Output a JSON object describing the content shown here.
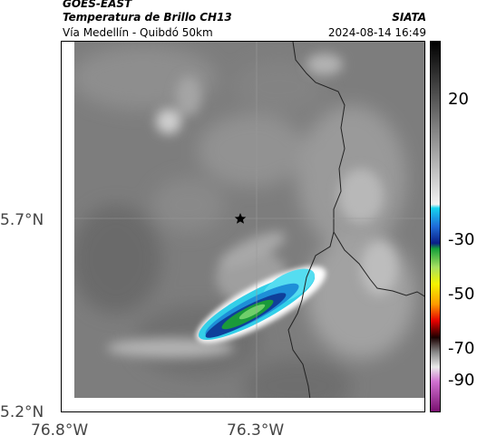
{
  "header": {
    "satellite": "GOES-EAST",
    "product": "Temperatura de Brillo CH13",
    "region": "Vía Medellín - Quibdó 50km",
    "agency": "SIATA",
    "datetime": "2024-08-14 16:49"
  },
  "map": {
    "lat_labels": [
      "5.7°N",
      "5.2°N"
    ],
    "lon_labels": [
      "76.8°W",
      "76.3°W"
    ],
    "marker": "star"
  },
  "colorbar": {
    "tick_labels": [
      "20",
      "-30",
      "-50",
      "-70",
      "-90"
    ],
    "range": [
      -100,
      40
    ]
  }
}
